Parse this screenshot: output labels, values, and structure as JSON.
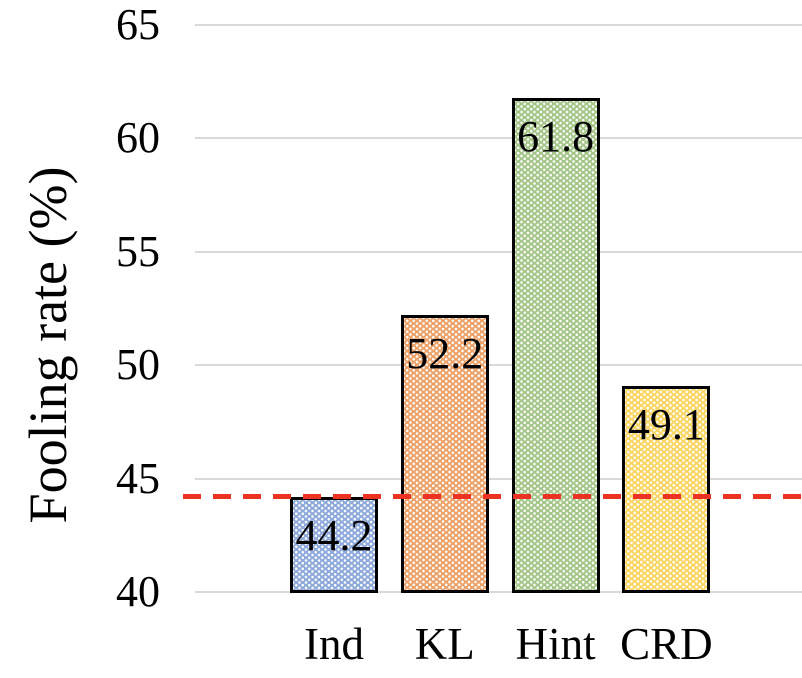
{
  "chart_data": {
    "type": "bar",
    "title": "",
    "xlabel": "",
    "ylabel": "Fooling rate (%)",
    "categories": [
      "Ind",
      "KL",
      "Hint",
      "CRD"
    ],
    "values": [
      44.2,
      52.2,
      61.8,
      49.1
    ],
    "data_labels": [
      "44.2",
      "52.2",
      "61.8",
      "49.1"
    ],
    "bar_colors": [
      "#8EA9DB",
      "#EDA269",
      "#A5C689",
      "#FBD665"
    ],
    "bar_fill_pattern": "white-dot-grid",
    "bar_border_color": "#000000",
    "yticks": [
      40,
      45,
      50,
      55,
      60,
      65
    ],
    "ytick_labels": [
      "40",
      "45",
      "50",
      "55",
      "60",
      "65"
    ],
    "ylim": [
      40,
      65
    ],
    "grid": true,
    "gridline_color": "#D9D9D9",
    "legend": false,
    "reference_line": {
      "value": 44.2,
      "color": "#EC3323",
      "style": "dashed"
    }
  }
}
